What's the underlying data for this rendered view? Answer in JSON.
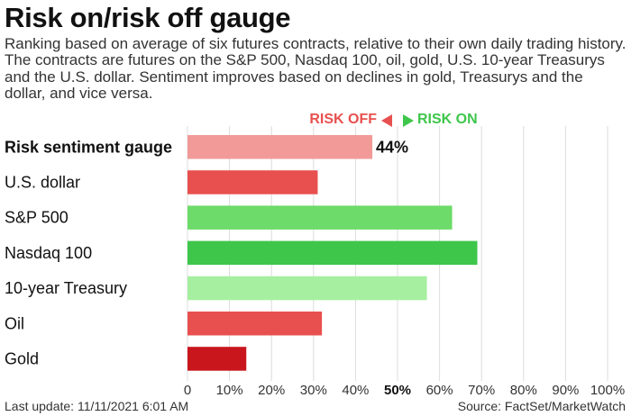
{
  "header": {
    "title": "Risk on/risk off gauge",
    "subtitle": "Ranking based on average of six futures contracts, relative to their own daily trading history. The contracts are futures on the S&P 500, Nasdaq 100, oil, gold, U.S. 10-year Treasurys and the U.S. dollar. Sentiment improves based on declines in gold, Treasurys and the dollar, and vice versa."
  },
  "legend": {
    "off_label": "RISK OFF",
    "on_label": "RISK ON",
    "off_color": "#e8504f",
    "on_color": "#3ec64b",
    "off_icon": "triangle-left-icon",
    "on_icon": "triangle-right-icon"
  },
  "footer": {
    "last_update": "Last update: 11/11/2021 6:01 AM",
    "source": "Source: FactSet/MarketWatch"
  },
  "chart_data": {
    "type": "bar",
    "orientation": "horizontal",
    "categories": [
      "Risk sentiment gauge",
      "U.S. dollar",
      "S&P 500",
      "Nasdaq 100",
      "10-year Treasury",
      "Oil",
      "Gold"
    ],
    "values": [
      44,
      31,
      63,
      69,
      57,
      32,
      14
    ],
    "colors": [
      "#f19a98",
      "#e8504f",
      "#6ddb6a",
      "#3ec64b",
      "#a6efa0",
      "#e8504f",
      "#c8161c"
    ],
    "bold_category": "Risk sentiment gauge",
    "value_labels": [
      "44%",
      "",
      "",
      "",
      "",
      "",
      ""
    ],
    "xlim": [
      0,
      100
    ],
    "xticks": [
      "0",
      "10%",
      "20%",
      "30%",
      "40%",
      "50%",
      "60%",
      "70%",
      "80%",
      "90%",
      "100%"
    ],
    "bold_tick": "50%",
    "grid": true
  }
}
